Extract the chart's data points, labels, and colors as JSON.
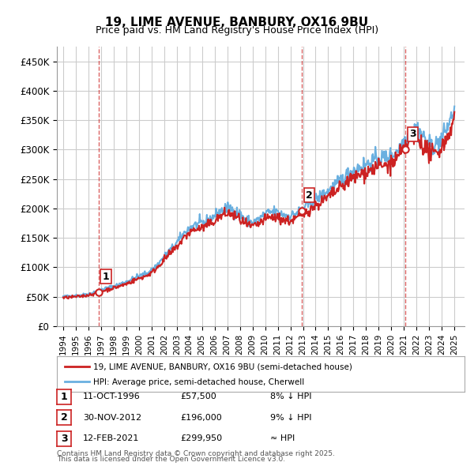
{
  "title": "19, LIME AVENUE, BANBURY, OX16 9BU",
  "subtitle": "Price paid vs. HM Land Registry's House Price Index (HPI)",
  "legend_line1": "19, LIME AVENUE, BANBURY, OX16 9BU (semi-detached house)",
  "legend_line2": "HPI: Average price, semi-detached house, Cherwell",
  "footer1": "Contains HM Land Registry data © Crown copyright and database right 2025.",
  "footer2": "This data is licensed under the Open Government Licence v3.0.",
  "transactions": [
    {
      "num": 1,
      "date": "11-OCT-1996",
      "price": "£57,500",
      "rel": "8% ↓ HPI",
      "year": 1996.79,
      "value": 57500
    },
    {
      "num": 2,
      "date": "30-NOV-2012",
      "price": "£196,000",
      "rel": "9% ↓ HPI",
      "year": 2012.92,
      "value": 196000
    },
    {
      "num": 3,
      "date": "12-FEB-2021",
      "price": "£299,950",
      "rel": "≈ HPI",
      "year": 2021.12,
      "value": 299950
    }
  ],
  "hpi_color": "#6ab0e0",
  "price_color": "#cc2222",
  "vline_color": "#cc2222",
  "background_color": "#ffffff",
  "grid_color": "#cccccc",
  "ylim": [
    0,
    475000
  ],
  "xlim_start": 1993.5,
  "xlim_end": 2025.8
}
